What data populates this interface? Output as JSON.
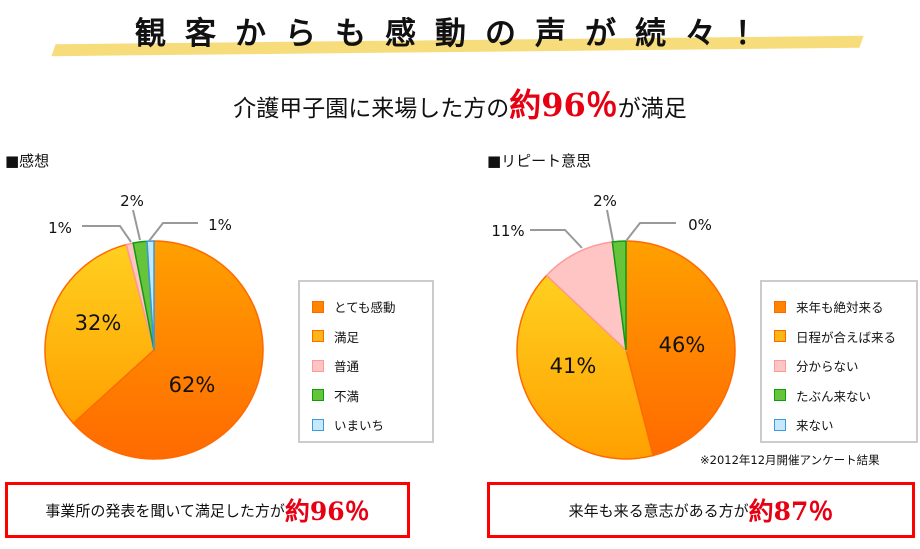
{
  "headline": "観客からも感動の声が続々！",
  "subhead": {
    "prefix": "介護甲子園に来場した方の",
    "highlight": "約96％",
    "suffix": "が満足"
  },
  "colors": {
    "accent_red": "#e60012",
    "band": "#f7dc7c"
  },
  "chart_data": [
    {
      "type": "pie",
      "title": "■感想",
      "start": "top",
      "direction": "clockwise",
      "slices": [
        {
          "label": "とても感動",
          "value": 62,
          "text": "62%",
          "color": "#ff8400",
          "stroke": "#ff6a00"
        },
        {
          "label": "満足",
          "value": 32,
          "text": "32%",
          "color": "#ffb514",
          "stroke": "#ff6a00"
        },
        {
          "label": "普通",
          "value": 1,
          "text": "1%",
          "color": "#ffc4c4",
          "stroke": "#ff9a9a"
        },
        {
          "label": "不満",
          "value": 2,
          "text": "2%",
          "color": "#66c43a",
          "stroke": "#109a10"
        },
        {
          "label": "いまいち",
          "value": 1,
          "text": "1%",
          "color": "#c6e8fb",
          "stroke": "#3a9be0"
        }
      ]
    },
    {
      "type": "pie",
      "title": "■リピート意思",
      "start": "top",
      "direction": "clockwise",
      "slices": [
        {
          "label": "来年も絶対来る",
          "value": 46,
          "text": "46%",
          "color": "#ff8400",
          "stroke": "#ff6a00"
        },
        {
          "label": "日程が合えば来る",
          "value": 41,
          "text": "41%",
          "color": "#ffb514",
          "stroke": "#ff6a00"
        },
        {
          "label": "分からない",
          "value": 11,
          "text": "11%",
          "color": "#ffc4c4",
          "stroke": "#ff9a9a"
        },
        {
          "label": "たぶん来ない",
          "value": 2,
          "text": "2%",
          "color": "#66c43a",
          "stroke": "#109a10"
        },
        {
          "label": "来ない",
          "value": 0,
          "text": "0%",
          "color": "#c6e8fb",
          "stroke": "#3a9be0"
        }
      ]
    }
  ],
  "note": "※2012年12月開催アンケート結果",
  "summary": [
    {
      "text": "事業所の発表を聞いて満足した方が",
      "highlight": "約96％"
    },
    {
      "text": "来年も来る意志がある方が",
      "highlight": "約87％"
    }
  ]
}
